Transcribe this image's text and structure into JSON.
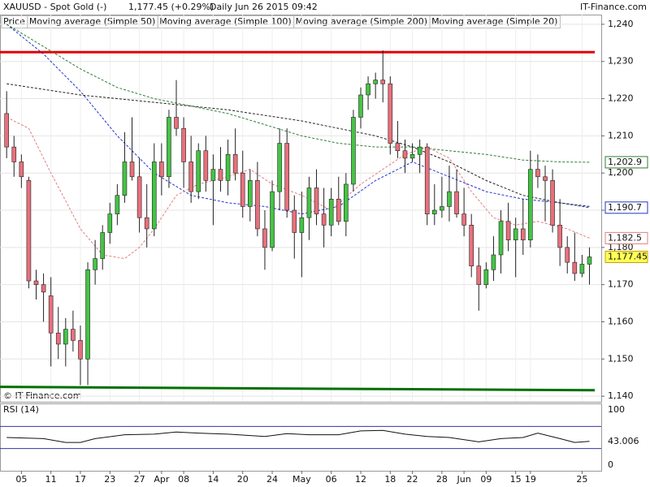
{
  "chart_data": {
    "type": "candlestick",
    "symbol": "XAUUSD - Spot Gold (-)",
    "quote": "1,177.45 (+0.29%)",
    "period": "Daily  Jun 26 2015 09:42",
    "brand": "IT-Finance.com",
    "copyright": "© IT-Finance.com",
    "price_legend": "Price",
    "xlim": [
      -0.9,
      80.6
    ],
    "xticks": [
      {
        "value": 2,
        "label": "05"
      },
      {
        "value": 6,
        "label": "11"
      },
      {
        "value": 10,
        "label": "17"
      },
      {
        "value": 14,
        "label": "23"
      },
      {
        "value": 18,
        "label": "27"
      },
      {
        "value": 21,
        "label": "Apr"
      },
      {
        "value": 24,
        "label": "08"
      },
      {
        "value": 28,
        "label": "14"
      },
      {
        "value": 32,
        "label": "20"
      },
      {
        "value": 36,
        "label": "24"
      },
      {
        "value": 40,
        "label": "May"
      },
      {
        "value": 44,
        "label": "06"
      },
      {
        "value": 48,
        "label": "12"
      },
      {
        "value": 52,
        "label": "18"
      },
      {
        "value": 55,
        "label": "22"
      },
      {
        "value": 59,
        "label": "28"
      },
      {
        "value": 62,
        "label": "Jun"
      },
      {
        "value": 65,
        "label": "09"
      },
      {
        "value": 69,
        "label": "15"
      },
      {
        "value": 71,
        "label": "19"
      },
      {
        "value": 78,
        "label": "25"
      }
    ],
    "ylim": [
      1138.5,
      1242.6
    ],
    "yticks": [
      {
        "value": 1240,
        "label": "1,240"
      },
      {
        "value": 1230,
        "label": "1,230"
      },
      {
        "value": 1220,
        "label": "1,220"
      },
      {
        "value": 1210,
        "label": "1,210"
      },
      {
        "value": 1200,
        "label": "1,200"
      },
      {
        "value": 1190,
        "label": "1,190"
      },
      {
        "value": 1180,
        "label": "1,180"
      },
      {
        "value": 1170,
        "label": "1,170"
      },
      {
        "value": 1160,
        "label": "1,160"
      },
      {
        "value": 1150,
        "label": "1,150"
      },
      {
        "value": 1140,
        "label": "1,140"
      }
    ],
    "grid": true,
    "up_color": "#44c444",
    "down_color": "#e8707c",
    "candles": {
      "open": [
        1216,
        1207,
        1203,
        1198,
        1171,
        1170,
        1167,
        1157,
        1154,
        1158,
        1155,
        1150,
        1174,
        1177,
        1184,
        1189,
        1194,
        1203,
        1199,
        1188,
        1185,
        1203,
        1199,
        1215,
        1212,
        1203,
        1195,
        1206,
        1198,
        1201,
        1198,
        1205,
        1200,
        1191,
        1198,
        1185,
        1180,
        1195,
        1208,
        1190,
        1184,
        1188,
        1196,
        1189,
        1186,
        1193,
        1187,
        1197,
        1215,
        1221,
        1224,
        1225,
        1224,
        1208,
        1206,
        1204,
        1205,
        1207,
        1189,
        1190,
        1191,
        1195,
        1189,
        1186,
        1175,
        1170,
        1174,
        1178,
        1187,
        1182,
        1185,
        1182,
        1201,
        1199,
        1198,
        1186,
        1180,
        1176,
        1173,
        1175.5
      ],
      "high": [
        1222,
        1210,
        1205,
        1199,
        1174,
        1173,
        1172,
        1164,
        1161,
        1163,
        1159,
        1176,
        1182,
        1186,
        1192,
        1197,
        1211,
        1215,
        1204,
        1197,
        1208,
        1208,
        1217,
        1225,
        1215,
        1210,
        1208,
        1210,
        1205,
        1207,
        1209,
        1212,
        1206,
        1201,
        1203,
        1190,
        1198,
        1212,
        1212,
        1194,
        1195,
        1199,
        1201,
        1196,
        1196,
        1199,
        1200,
        1217,
        1223,
        1226,
        1227,
        1233,
        1226,
        1214,
        1209,
        1208,
        1209,
        1208,
        1197,
        1199,
        1202,
        1201,
        1196,
        1189,
        1180,
        1176,
        1183,
        1190,
        1192,
        1188,
        1193,
        1206,
        1205,
        1202,
        1201,
        1193,
        1183,
        1184,
        1178,
        1180
      ],
      "low": [
        1204,
        1199,
        1196,
        1169,
        1166,
        1160,
        1148,
        1150,
        1148,
        1152,
        1143,
        1143,
        1170,
        1174,
        1181,
        1186,
        1192,
        1198,
        1184,
        1180,
        1183,
        1194,
        1196,
        1210,
        1196,
        1192,
        1193,
        1195,
        1186,
        1195,
        1194,
        1198,
        1188,
        1187,
        1183,
        1174,
        1179,
        1190,
        1188,
        1177,
        1172,
        1182,
        1186,
        1180,
        1183,
        1186,
        1183,
        1195,
        1212,
        1217,
        1220,
        1219,
        1205,
        1204,
        1200,
        1203,
        1200,
        1186,
        1186,
        1188,
        1187,
        1188,
        1183,
        1172,
        1163,
        1169,
        1171,
        1173,
        1179,
        1172,
        1178,
        1180,
        1196,
        1187,
        1184,
        1175,
        1173,
        1171,
        1172,
        1170
      ],
      "close": [
        1207,
        1203,
        1199,
        1171,
        1170,
        1168,
        1157,
        1154,
        1158,
        1155,
        1150,
        1174,
        1177,
        1184,
        1189,
        1194,
        1203,
        1199,
        1188,
        1185,
        1203,
        1199,
        1215,
        1212,
        1203,
        1195,
        1206,
        1198,
        1201,
        1198,
        1205,
        1200,
        1191,
        1198,
        1185,
        1180,
        1195,
        1208,
        1190,
        1184,
        1188,
        1196,
        1189,
        1186,
        1193,
        1187,
        1197,
        1215,
        1221,
        1224,
        1225,
        1224,
        1208,
        1206,
        1204,
        1205,
        1207,
        1189,
        1190,
        1191,
        1195,
        1189,
        1186,
        1175,
        1170,
        1174,
        1178,
        1187,
        1182,
        1185,
        1182,
        1201,
        1199,
        1198,
        1186,
        1180,
        1176,
        1173,
        1175.5,
        1177.45
      ]
    },
    "series": [
      {
        "name": "Moving average (Simple 50)",
        "color": "#2233cc",
        "x": [
          0,
          5,
          10,
          15,
          20,
          25,
          30,
          35,
          40,
          45,
          50,
          55,
          60,
          65,
          70,
          75,
          79
        ],
        "values": [
          1240,
          1232,
          1222,
          1210,
          1200,
          1194,
          1192,
          1191,
          1189,
          1191,
          1198,
          1203,
          1199,
          1195,
          1193,
          1192,
          1190.7
        ]
      },
      {
        "name": "Moving average (Simple 100)",
        "color": "#222222",
        "x": [
          0,
          10,
          20,
          30,
          40,
          45,
          50,
          55,
          60,
          65,
          70,
          75,
          79
        ],
        "values": [
          1224,
          1221,
          1219,
          1217,
          1214,
          1212,
          1210,
          1207,
          1203,
          1198,
          1194,
          1192,
          1191
        ]
      },
      {
        "name": "Moving average (Simple 200)",
        "color": "#2e7d32",
        "x": [
          0,
          5,
          10,
          15,
          20,
          25,
          30,
          35,
          40,
          45,
          50,
          55,
          60,
          65,
          70,
          75,
          79
        ],
        "values": [
          1240,
          1234,
          1228,
          1223,
          1220,
          1218,
          1216,
          1213,
          1210,
          1208,
          1207,
          1207,
          1206,
          1205,
          1203.5,
          1203,
          1202.9
        ]
      },
      {
        "name": "Moving average (Simple 20)",
        "color": "#e08080",
        "x": [
          0,
          3,
          6,
          10,
          13,
          16,
          18,
          20,
          23,
          26,
          30,
          33,
          36,
          40,
          44,
          48,
          51,
          54,
          57,
          60,
          63,
          66,
          69,
          72,
          76,
          79
        ],
        "values": [
          1215,
          1212,
          1200,
          1185,
          1178,
          1177,
          1180,
          1185,
          1194,
          1197,
          1199,
          1201,
          1197,
          1194,
          1190,
          1197,
          1201,
          1205,
          1207,
          1204,
          1195,
          1188,
          1186,
          1187,
          1185,
          1182.5
        ]
      }
    ],
    "price_labels": [
      {
        "value": 1202.9,
        "label": "1,202.9",
        "color": "#2e7d32"
      },
      {
        "value": 1190.7,
        "label": "1,190.7",
        "color": "#2233cc"
      },
      {
        "value": 1182.5,
        "label": "1,182.5",
        "color": "#e08080"
      },
      {
        "value": 1177.45,
        "label": "1,177.45",
        "color": "#c8a000"
      }
    ],
    "lines": [
      {
        "color": "#e00000",
        "values": [
          1232.5,
          1232.5
        ]
      },
      {
        "color": "#007000",
        "values": [
          1142.5,
          1141.6
        ]
      }
    ],
    "rsi": {
      "name": "RSI (14)",
      "color": "#111111",
      "ylim": [
        -10.3,
        111.8
      ],
      "yticks": [
        0,
        100
      ],
      "levels": [
        30,
        70
      ],
      "x": [
        0,
        5,
        8,
        10,
        12,
        16,
        20,
        23,
        26,
        30,
        35,
        38,
        41,
        45,
        48,
        51,
        54,
        57,
        60,
        64,
        67,
        70,
        72,
        75,
        77,
        79
      ],
      "values": [
        50,
        48,
        41,
        41,
        48,
        55,
        56,
        60,
        58,
        56,
        52,
        57,
        55,
        55,
        62,
        63,
        56,
        52,
        50,
        42,
        48,
        50,
        58,
        48,
        41,
        43.006
      ],
      "last_label": {
        "value": 43.006,
        "label": "43.006"
      }
    }
  }
}
